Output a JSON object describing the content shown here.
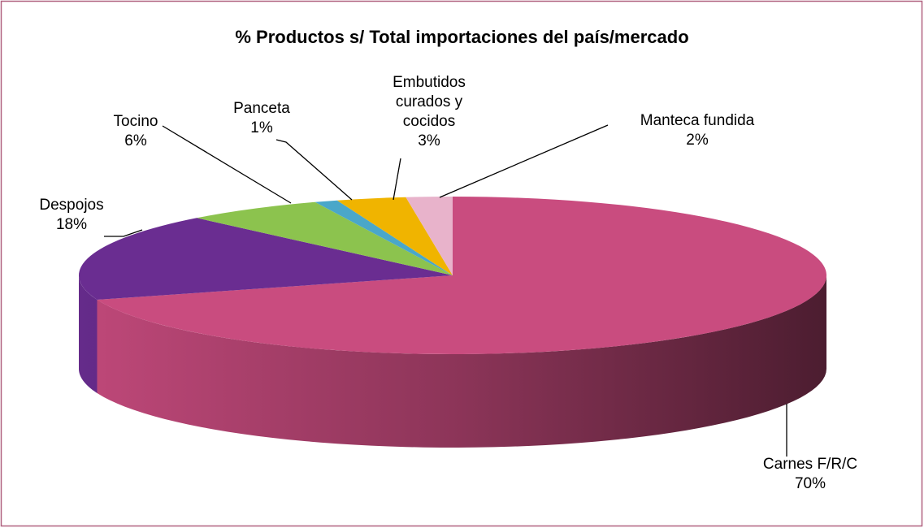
{
  "chart_data": {
    "type": "pie",
    "title": "% Productos  s/ Total importaciones del país/mercado",
    "categories": [
      "Carnes F/R/C",
      "Despojos",
      "Tocino",
      "Panceta",
      "Embutidos curados y cocidos",
      "Manteca fundida"
    ],
    "values": [
      70,
      18,
      6,
      1,
      3,
      2
    ],
    "value_labels": [
      "70%",
      "18%",
      "6%",
      "1%",
      "3%",
      "2%"
    ],
    "colors": [
      "#c94c7f",
      "#6a2d91",
      "#8cc34e",
      "#4aa7c9",
      "#f0b400",
      "#e8b3cb"
    ]
  }
}
